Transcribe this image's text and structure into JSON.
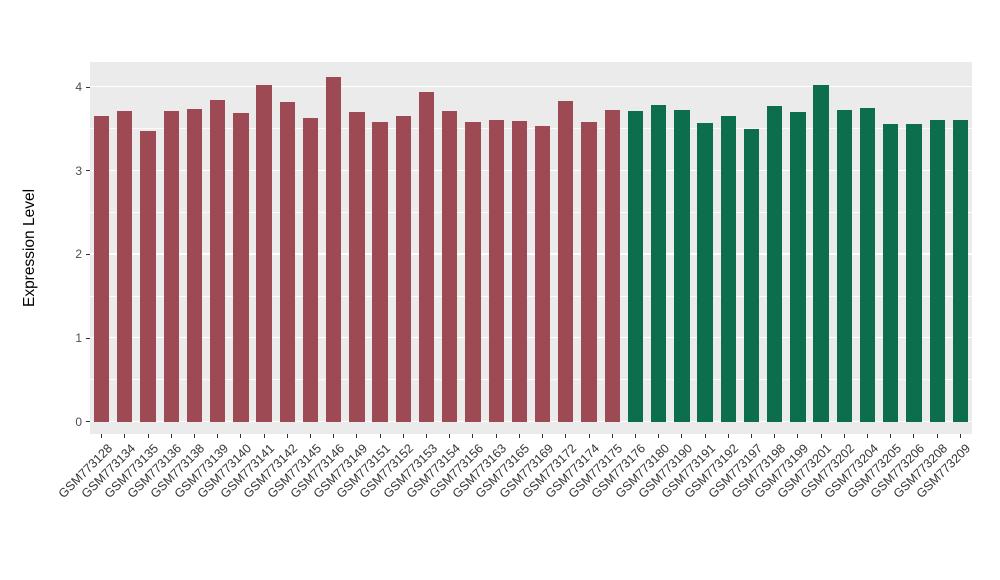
{
  "chart_data": {
    "type": "bar",
    "title": "",
    "xlabel": "",
    "ylabel": "Expression Level",
    "ylim": [
      0,
      4.3
    ],
    "yticks": [
      0,
      1,
      2,
      3,
      4
    ],
    "minor_gridlines": [
      0.5,
      1.5,
      2.5,
      3.5
    ],
    "grid": "on",
    "legend_position": "none",
    "panel_background": "#ebebeb",
    "gridline_color": "#ffffff",
    "group_colors": [
      "#9e4a55",
      "#0d6e4e"
    ],
    "categories": [
      "GSM773128",
      "GSM773134",
      "GSM773135",
      "GSM773136",
      "GSM773138",
      "GSM773139",
      "GSM773140",
      "GSM773141",
      "GSM773142",
      "GSM773145",
      "GSM773146",
      "GSM773149",
      "GSM773151",
      "GSM773152",
      "GSM773153",
      "GSM773154",
      "GSM773156",
      "GSM773163",
      "GSM773165",
      "GSM773169",
      "GSM773172",
      "GSM773174",
      "GSM773175",
      "GSM773176",
      "GSM773180",
      "GSM773190",
      "GSM773191",
      "GSM773192",
      "GSM773197",
      "GSM773198",
      "GSM773199",
      "GSM773201",
      "GSM773202",
      "GSM773204",
      "GSM773205",
      "GSM773206",
      "GSM773208",
      "GSM773209"
    ],
    "values": [
      3.65,
      3.72,
      3.47,
      3.72,
      3.74,
      3.85,
      3.69,
      4.02,
      3.82,
      3.63,
      4.12,
      3.7,
      3.58,
      3.65,
      3.94,
      3.71,
      3.58,
      3.61,
      3.6,
      3.54,
      3.84,
      3.58,
      3.73,
      3.72,
      3.79,
      3.73,
      3.57,
      3.66,
      3.5,
      3.77,
      3.7,
      4.02,
      3.73,
      3.75,
      3.56,
      3.56,
      3.61,
      3.61
    ],
    "bar_groups": [
      0,
      0,
      0,
      0,
      0,
      0,
      0,
      0,
      0,
      0,
      0,
      0,
      0,
      0,
      0,
      0,
      0,
      0,
      0,
      0,
      0,
      0,
      0,
      1,
      1,
      1,
      1,
      1,
      1,
      1,
      1,
      1,
      1,
      1,
      1,
      1,
      1,
      1
    ]
  }
}
